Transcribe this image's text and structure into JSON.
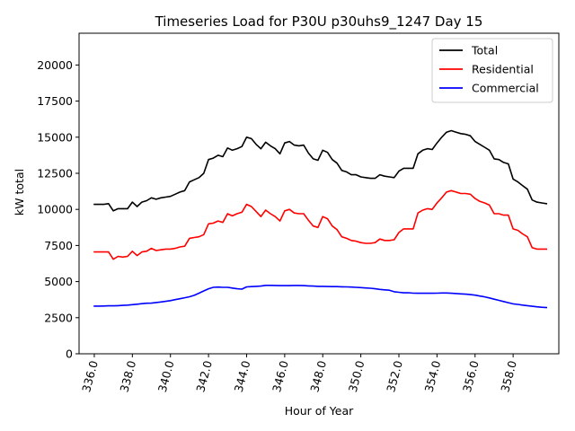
{
  "chart_data": {
    "type": "line",
    "title": "Timeseries Load for P30U p30uhs9_1247  Day 15",
    "xlabel": "Hour of Year",
    "ylabel": "kW total",
    "xlim": [
      335.2,
      360.4
    ],
    "ylim": [
      0,
      22200
    ],
    "x_ticks": [
      336,
      338,
      340,
      342,
      344,
      346,
      348,
      350,
      352,
      354,
      356,
      358
    ],
    "x_tick_labels": [
      "336.0",
      "338.0",
      "340.0",
      "342.0",
      "344.0",
      "346.0",
      "348.0",
      "350.0",
      "352.0",
      "354.0",
      "356.0",
      "358.0"
    ],
    "y_ticks": [
      0,
      2500,
      5000,
      7500,
      10000,
      12500,
      15000,
      17500,
      20000
    ],
    "y_tick_labels": [
      "0",
      "2500",
      "5000",
      "7500",
      "10000",
      "12500",
      "15000",
      "17500",
      "20000"
    ],
    "legend_position": "top-right",
    "x": [
      336.0,
      336.25,
      336.5,
      336.75,
      337.0,
      337.25,
      337.5,
      337.75,
      338.0,
      338.25,
      338.5,
      338.75,
      339.0,
      339.25,
      339.5,
      339.75,
      340.0,
      340.25,
      340.5,
      340.75,
      341.0,
      341.25,
      341.5,
      341.75,
      342.0,
      342.25,
      342.5,
      342.75,
      343.0,
      343.25,
      343.5,
      343.75,
      344.0,
      344.25,
      344.5,
      344.75,
      345.0,
      345.25,
      345.5,
      345.75,
      346.0,
      346.25,
      346.5,
      346.75,
      347.0,
      347.25,
      347.5,
      347.75,
      348.0,
      348.25,
      348.5,
      348.75,
      349.0,
      349.25,
      349.5,
      349.75,
      350.0,
      350.25,
      350.5,
      350.75,
      351.0,
      351.25,
      351.5,
      351.75,
      352.0,
      352.25,
      352.5,
      352.75,
      353.0,
      353.25,
      353.5,
      353.75,
      354.0,
      354.25,
      354.5,
      354.75,
      355.0,
      355.25,
      355.5,
      355.75,
      356.0,
      356.25,
      356.5,
      356.75,
      357.0,
      357.25,
      357.5,
      357.75,
      358.0,
      358.25,
      358.5,
      358.75,
      359.0,
      359.25,
      359.5,
      359.75
    ],
    "series": [
      {
        "name": "Total",
        "color": "#000000",
        "values": [
          10350,
          10350,
          10350,
          10400,
          9900,
          10050,
          10050,
          10050,
          10500,
          10200,
          10500,
          10600,
          10800,
          10700,
          10800,
          10850,
          10900,
          11050,
          11200,
          11300,
          11900,
          12050,
          12200,
          12500,
          13450,
          13550,
          13750,
          13650,
          14250,
          14100,
          14200,
          14350,
          15000,
          14900,
          14500,
          14200,
          14650,
          14400,
          14200,
          13850,
          14600,
          14700,
          14450,
          14400,
          14450,
          13900,
          13500,
          13400,
          14100,
          13950,
          13450,
          13200,
          12700,
          12600,
          12400,
          12400,
          12250,
          12200,
          12150,
          12150,
          12400,
          12300,
          12250,
          12200,
          12650,
          12850,
          12850,
          12850,
          13850,
          14100,
          14200,
          14150,
          14600,
          15000,
          15350,
          15450,
          15350,
          15250,
          15200,
          15100,
          14700,
          14500,
          14300,
          14100,
          13500,
          13450,
          13250,
          13150,
          12100,
          11900,
          11650,
          11400,
          10650,
          10500,
          10450,
          10400
        ]
      },
      {
        "name": "Residential",
        "color": "#ff0000",
        "values": [
          7050,
          7050,
          7050,
          7050,
          6550,
          6750,
          6700,
          6750,
          7100,
          6800,
          7050,
          7100,
          7300,
          7150,
          7200,
          7250,
          7250,
          7300,
          7400,
          7450,
          8000,
          8050,
          8100,
          8250,
          9000,
          9050,
          9200,
          9100,
          9700,
          9550,
          9700,
          9800,
          10350,
          10200,
          9850,
          9500,
          9950,
          9700,
          9500,
          9200,
          9900,
          10000,
          9750,
          9700,
          9700,
          9250,
          8850,
          8750,
          9500,
          9350,
          8850,
          8600,
          8100,
          8000,
          7850,
          7800,
          7700,
          7650,
          7650,
          7700,
          7950,
          7850,
          7850,
          7900,
          8400,
          8650,
          8650,
          8650,
          9750,
          9950,
          10050,
          10000,
          10450,
          10800,
          11200,
          11300,
          11200,
          11100,
          11100,
          11050,
          10750,
          10550,
          10450,
          10300,
          9700,
          9700,
          9600,
          9600,
          8650,
          8550,
          8300,
          8100,
          7350,
          7250,
          7250,
          7250
        ]
      },
      {
        "name": "Commercial",
        "color": "#0000ff",
        "values": [
          3300,
          3300,
          3310,
          3320,
          3320,
          3330,
          3350,
          3370,
          3400,
          3430,
          3470,
          3500,
          3510,
          3550,
          3590,
          3630,
          3680,
          3750,
          3810,
          3880,
          3950,
          4050,
          4200,
          4350,
          4500,
          4600,
          4620,
          4600,
          4600,
          4550,
          4500,
          4480,
          4630,
          4650,
          4670,
          4690,
          4740,
          4740,
          4730,
          4720,
          4720,
          4720,
          4730,
          4730,
          4720,
          4700,
          4690,
          4670,
          4670,
          4660,
          4650,
          4650,
          4640,
          4630,
          4620,
          4600,
          4580,
          4560,
          4540,
          4500,
          4460,
          4430,
          4400,
          4300,
          4260,
          4220,
          4230,
          4200,
          4190,
          4190,
          4190,
          4190,
          4200,
          4210,
          4210,
          4190,
          4170,
          4150,
          4130,
          4100,
          4060,
          4000,
          3940,
          3870,
          3780,
          3700,
          3620,
          3540,
          3460,
          3420,
          3370,
          3330,
          3290,
          3250,
          3220,
          3200
        ]
      }
    ]
  }
}
